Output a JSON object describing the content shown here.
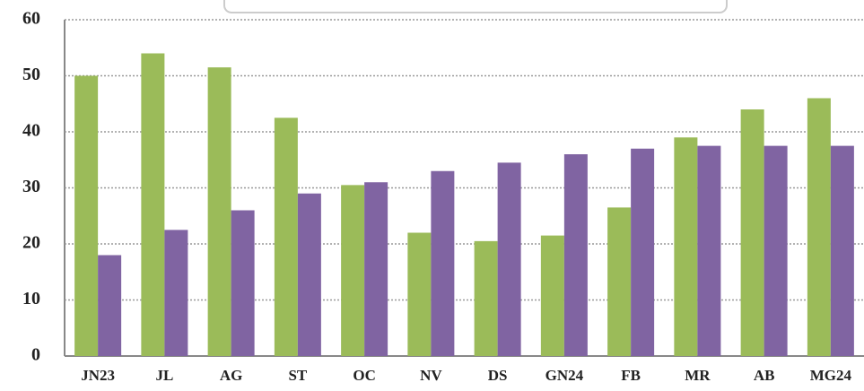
{
  "chart_data": {
    "type": "bar",
    "categories": [
      "JN23",
      "JL",
      "AG",
      "ST",
      "OC",
      "NV",
      "DS",
      "GN24",
      "FB",
      "MR",
      "AB",
      "MG24"
    ],
    "series": [
      {
        "color": "#9bbb59",
        "values": [
          50,
          54,
          51.5,
          42.5,
          30.5,
          22,
          20.5,
          21.5,
          26.5,
          39,
          44,
          46
        ]
      },
      {
        "color": "#8064a2",
        "values": [
          18,
          22.5,
          26,
          29,
          31,
          33,
          34.5,
          36,
          37,
          37.5,
          37.5,
          37.5
        ]
      }
    ],
    "ylim": [
      0,
      60
    ],
    "yticks": [
      0,
      10,
      20,
      30,
      40,
      50,
      60
    ],
    "grid": true
  }
}
